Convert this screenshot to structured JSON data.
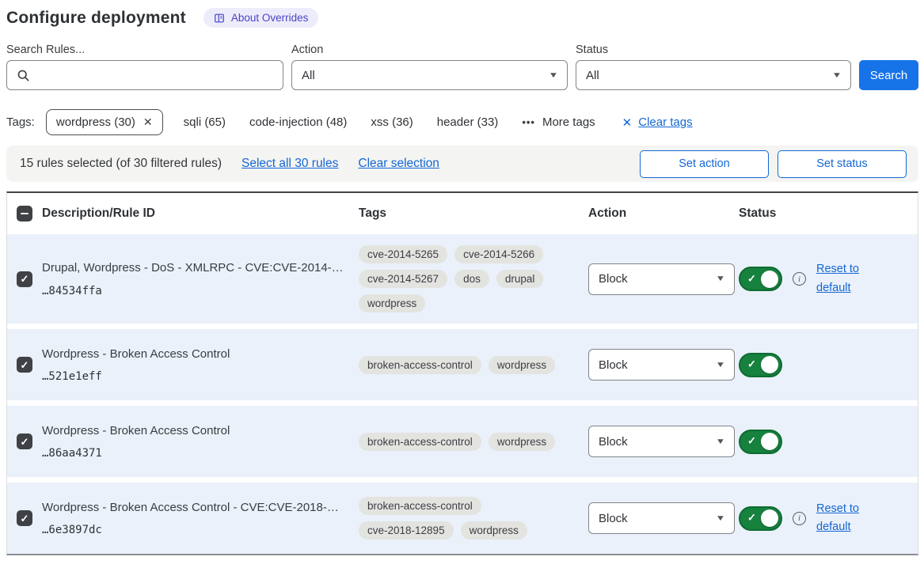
{
  "page": {
    "title": "Configure deployment",
    "about_badge": "About Overrides"
  },
  "icons": {
    "caret": "▼",
    "close": "✕",
    "check": "✓",
    "more_dots": "•••",
    "info": "i"
  },
  "colors": {
    "accent_blue": "#1467d6",
    "button_blue": "#1673e8",
    "toggle_green": "#17813e",
    "row_bg": "#eaf1fa",
    "badge_bg": "#edecfa",
    "badge_text": "#4a45c9",
    "chip_bg": "#e3e3e0",
    "selection_bar_bg": "#f4f4f2",
    "checkbox_dark": "#3f4144"
  },
  "filters": {
    "search_label": "Search Rules...",
    "search_value": "",
    "action_label": "Action",
    "action_value": "All",
    "status_label": "Status",
    "status_value": "All",
    "search_button": "Search"
  },
  "tags_bar": {
    "label": "Tags:",
    "selected_tag": "wordpress (30)",
    "tags": [
      "sqli (65)",
      "code-injection (48)",
      "xss (36)",
      "header (33)"
    ],
    "more_tags": "More tags",
    "clear_tags": "Clear tags"
  },
  "selection_bar": {
    "summary": "15 rules selected (of 30 filtered rules)",
    "select_all": "Select all 30 rules",
    "clear_selection": "Clear selection",
    "set_action": "Set action",
    "set_status": "Set status"
  },
  "table": {
    "headers": {
      "description": "Description/Rule ID",
      "tags": "Tags",
      "action": "Action",
      "status": "Status"
    },
    "rows": [
      {
        "description": "Drupal, Wordpress - DoS - XMLRPC - CVE:CVE-2014-…",
        "rule_id": "…84534ffa",
        "tags": [
          "cve-2014-5265",
          "cve-2014-5266",
          "cve-2014-5267",
          "dos",
          "drupal",
          "wordpress"
        ],
        "action": "Block",
        "checked": true,
        "enabled": true,
        "has_reset": true,
        "reset_label": "Reset to default"
      },
      {
        "description": "Wordpress - Broken Access Control",
        "rule_id": "…521e1eff",
        "tags": [
          "broken-access-control",
          "wordpress"
        ],
        "action": "Block",
        "checked": true,
        "enabled": true,
        "has_reset": false,
        "reset_label": ""
      },
      {
        "description": "Wordpress - Broken Access Control",
        "rule_id": "…86aa4371",
        "tags": [
          "broken-access-control",
          "wordpress"
        ],
        "action": "Block",
        "checked": true,
        "enabled": true,
        "has_reset": false,
        "reset_label": ""
      },
      {
        "description": "Wordpress - Broken Access Control - CVE:CVE-2018-…",
        "rule_id": "…6e3897dc",
        "tags": [
          "broken-access-control",
          "cve-2018-12895",
          "wordpress"
        ],
        "action": "Block",
        "checked": true,
        "enabled": true,
        "has_reset": true,
        "reset_label": "Reset to default"
      }
    ]
  }
}
